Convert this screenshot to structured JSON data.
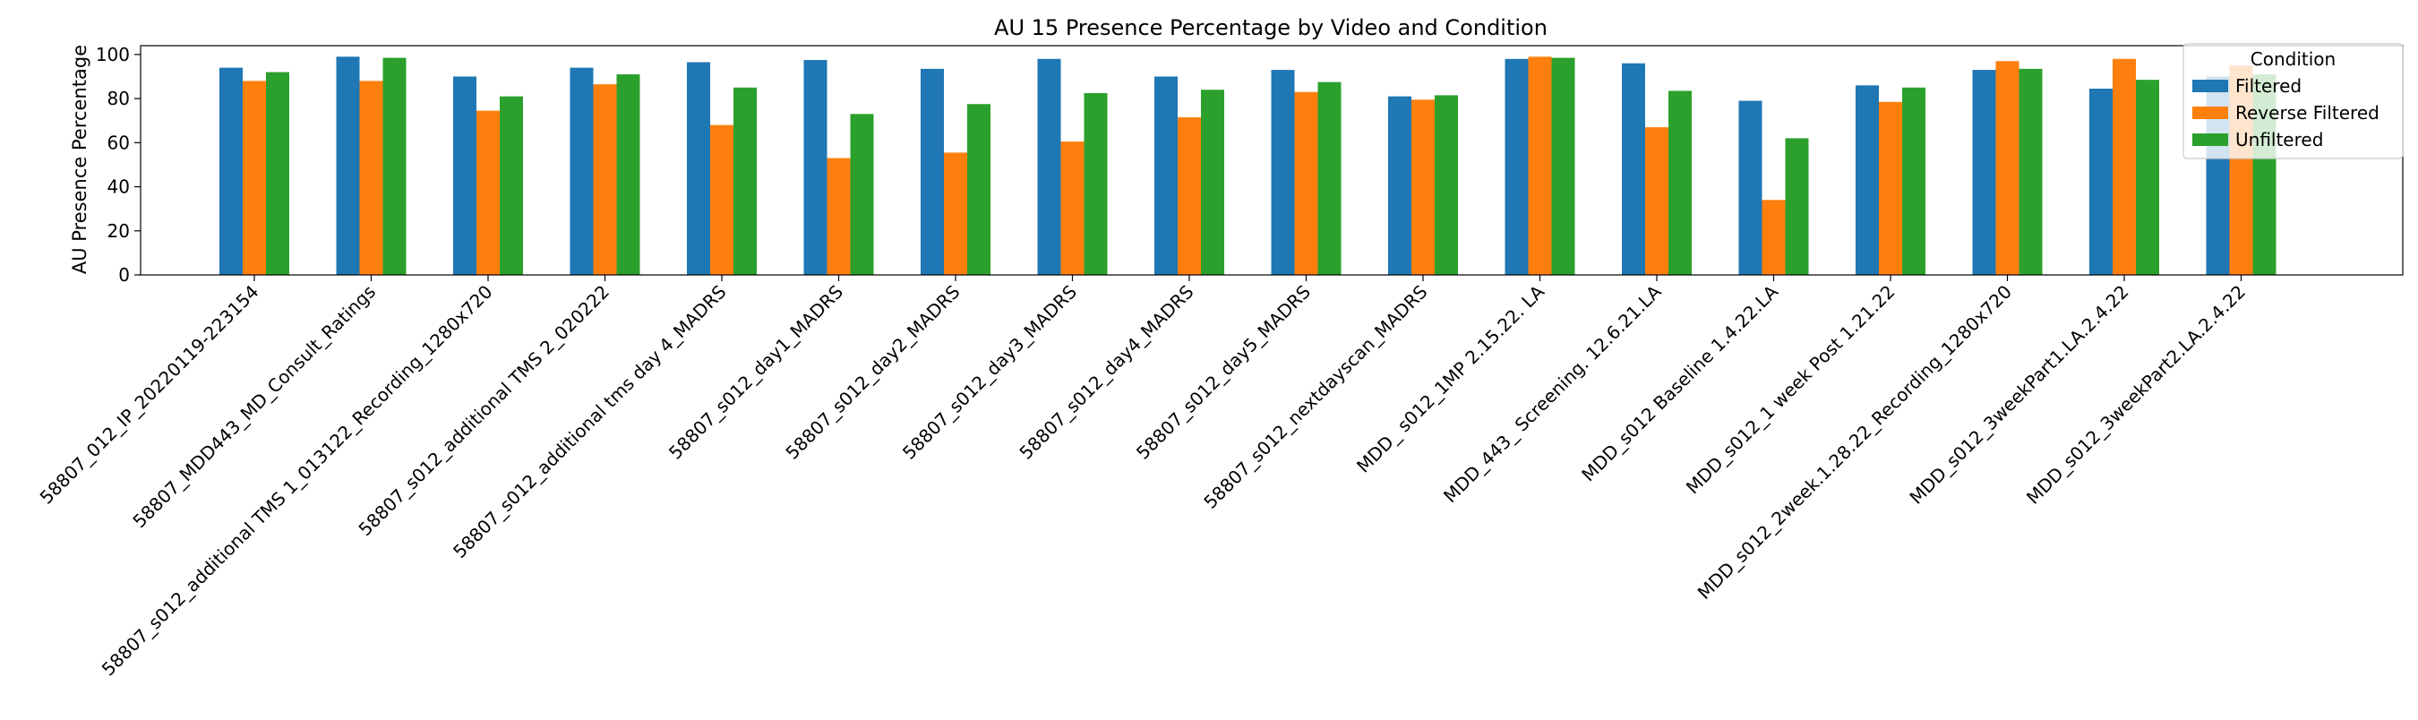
{
  "chart_data": {
    "type": "bar",
    "title": "AU 15 Presence Percentage by Video and Condition",
    "xlabel": "",
    "ylabel": "AU Presence Percentage",
    "ylim": [
      0,
      104
    ],
    "yticks": [
      0,
      20,
      40,
      60,
      80,
      100
    ],
    "grid": false,
    "legend_title": "Condition",
    "legend_position": "top-right",
    "categories": [
      "58807_012_IP_20220119-223154",
      "58807_MDD443_MD_Consult_Ratings",
      "58807_s012_additional TMS 1_013122_Recording_1280x720",
      "58807_s012_additional TMS 2_020222",
      "58807_s012_additional tms day 4_MADRS",
      "58807_s012_day1_MADRS",
      "58807_s012_day2_MADRS",
      "58807_s012_day3_MADRS",
      "58807_s012_day4_MADRS",
      "58807_s012_day5_MADRS",
      "58807_s012_nextdayscan_MADRS",
      "MDD_ s012_1MP  2.15.22. LA",
      "MDD_443_ Screening. 12.6.21.LA",
      "MDD_s012 Baseline 1.4.22.LA",
      "MDD_s012_1 week Post 1.21.22",
      "MDD_s012_2week.1.28.22_Recording_1280x720",
      "MDD_s012_3weekPart1.LA.2.4.22",
      "MDD_s012_3weekPart2.LA.2.4.22"
    ],
    "series": [
      {
        "name": "Filtered",
        "color": "#1f77b4",
        "values": [
          94,
          99,
          90,
          94,
          96.5,
          97.5,
          93.5,
          98,
          90,
          93,
          81,
          98,
          96,
          79,
          86,
          93,
          84.5,
          90
        ]
      },
      {
        "name": "Reverse Filtered",
        "color": "#ff7f0e",
        "values": [
          88,
          88,
          74.5,
          86.5,
          68,
          53,
          55.5,
          60.5,
          71.5,
          83,
          79.5,
          99,
          67,
          34,
          78.5,
          97,
          98,
          95
        ]
      },
      {
        "name": "Unfiltered",
        "color": "#2ca02c",
        "values": [
          92,
          98.5,
          81,
          91,
          85,
          73,
          77.5,
          82.5,
          84,
          87.5,
          81.5,
          98.5,
          83.5,
          62,
          85,
          93.5,
          88.5,
          91
        ]
      }
    ]
  }
}
